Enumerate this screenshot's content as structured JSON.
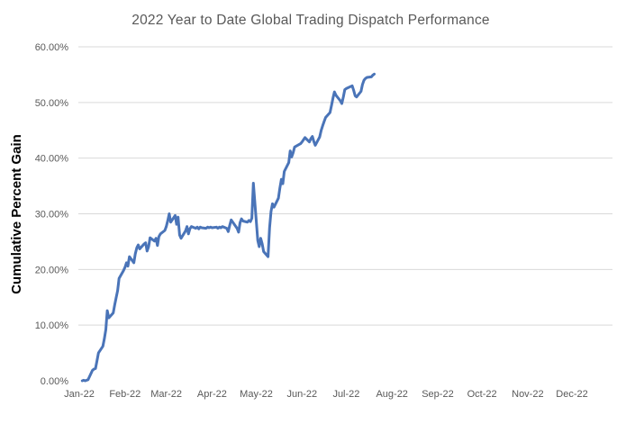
{
  "title": "2022 Year to Date Global Trading Dispatch Performance",
  "colors": {
    "background": "#FFFFFF",
    "title_text": "#595959",
    "axis_label_text": "#595959",
    "axis_title_text": "#000000",
    "gridline": "#D9D9D9",
    "line": "#4A74B8"
  },
  "chart_data": {
    "type": "line",
    "title": "2022 Year to Date Global Trading Dispatch Performance",
    "xlabel": "",
    "ylabel": "Cumulative Percent Gain",
    "ylim": [
      0,
      60
    ],
    "y_tick_labels": [
      "0.00%",
      "10.00%",
      "20.00%",
      "30.00%",
      "40.00%",
      "50.00%",
      "60.00%"
    ],
    "x_tick_labels": [
      "Jan-22",
      "Feb-22",
      "Mar-22",
      "Apr-22",
      "May-22",
      "Jun-22",
      "Jul-22",
      "Aug-22",
      "Sep-22",
      "Oct-22",
      "Nov-22",
      "Dec-22"
    ],
    "grid": "horizontal-only, no gridline at 0%",
    "legend": "none",
    "units": "percent",
    "series": [
      {
        "name": "Cumulative Percent Gain",
        "color": "#4A74B8",
        "points": [
          [
            "2022-01-03",
            0.0
          ],
          [
            "2022-01-04",
            0.1
          ],
          [
            "2022-01-05",
            0.0
          ],
          [
            "2022-01-06",
            0.1
          ],
          [
            "2022-01-07",
            0.2
          ],
          [
            "2022-01-10",
            1.9
          ],
          [
            "2022-01-11",
            2.1
          ],
          [
            "2022-01-12",
            2.2
          ],
          [
            "2022-01-13",
            3.6
          ],
          [
            "2022-01-14",
            5.0
          ],
          [
            "2022-01-17",
            6.2
          ],
          [
            "2022-01-18",
            7.5
          ],
          [
            "2022-01-19",
            9.2
          ],
          [
            "2022-01-20",
            12.6
          ],
          [
            "2022-01-21",
            11.3
          ],
          [
            "2022-01-24",
            12.2
          ],
          [
            "2022-01-25",
            13.6
          ],
          [
            "2022-01-26",
            14.9
          ],
          [
            "2022-01-27",
            16.2
          ],
          [
            "2022-01-28",
            18.4
          ],
          [
            "2022-01-31",
            19.8
          ],
          [
            "2022-02-01",
            20.4
          ],
          [
            "2022-02-02",
            21.2
          ],
          [
            "2022-02-03",
            20.6
          ],
          [
            "2022-02-04",
            22.3
          ],
          [
            "2022-02-07",
            21.2
          ],
          [
            "2022-02-08",
            22.8
          ],
          [
            "2022-02-09",
            23.9
          ],
          [
            "2022-02-10",
            24.4
          ],
          [
            "2022-02-11",
            23.7
          ],
          [
            "2022-02-14",
            24.6
          ],
          [
            "2022-02-15",
            24.8
          ],
          [
            "2022-02-16",
            23.3
          ],
          [
            "2022-02-17",
            24.1
          ],
          [
            "2022-02-18",
            25.7
          ],
          [
            "2022-02-21",
            25.1
          ],
          [
            "2022-02-22",
            25.6
          ],
          [
            "2022-02-23",
            24.3
          ],
          [
            "2022-02-24",
            25.9
          ],
          [
            "2022-02-25",
            26.4
          ],
          [
            "2022-02-28",
            27.0
          ],
          [
            "2022-03-01",
            27.7
          ],
          [
            "2022-03-02",
            28.8
          ],
          [
            "2022-03-03",
            30.0
          ],
          [
            "2022-03-04",
            28.5
          ],
          [
            "2022-03-07",
            29.7
          ],
          [
            "2022-03-08",
            28.1
          ],
          [
            "2022-03-09",
            29.4
          ],
          [
            "2022-03-10",
            26.2
          ],
          [
            "2022-03-11",
            25.6
          ],
          [
            "2022-03-14",
            26.9
          ],
          [
            "2022-03-15",
            27.7
          ],
          [
            "2022-03-16",
            26.4
          ],
          [
            "2022-03-17",
            27.3
          ],
          [
            "2022-03-18",
            27.7
          ],
          [
            "2022-03-21",
            27.4
          ],
          [
            "2022-03-22",
            27.6
          ],
          [
            "2022-03-23",
            27.3
          ],
          [
            "2022-03-24",
            27.6
          ],
          [
            "2022-03-25",
            27.5
          ],
          [
            "2022-03-28",
            27.4
          ],
          [
            "2022-03-29",
            27.6
          ],
          [
            "2022-03-30",
            27.5
          ],
          [
            "2022-03-31",
            27.6
          ],
          [
            "2022-04-01",
            27.5
          ],
          [
            "2022-04-04",
            27.6
          ],
          [
            "2022-04-05",
            27.4
          ],
          [
            "2022-04-06",
            27.6
          ],
          [
            "2022-04-07",
            27.5
          ],
          [
            "2022-04-08",
            27.7
          ],
          [
            "2022-04-11",
            27.4
          ],
          [
            "2022-04-12",
            26.8
          ],
          [
            "2022-04-13",
            27.9
          ],
          [
            "2022-04-14",
            28.9
          ],
          [
            "2022-04-18",
            27.4
          ],
          [
            "2022-04-19",
            26.7
          ],
          [
            "2022-04-20",
            28.4
          ],
          [
            "2022-04-21",
            29.1
          ],
          [
            "2022-04-22",
            28.7
          ],
          [
            "2022-04-25",
            28.5
          ],
          [
            "2022-04-26",
            28.8
          ],
          [
            "2022-04-27",
            28.6
          ],
          [
            "2022-04-28",
            29.2
          ],
          [
            "2022-04-29",
            35.5
          ],
          [
            "2022-05-02",
            25.2
          ],
          [
            "2022-05-03",
            24.1
          ],
          [
            "2022-05-04",
            25.6
          ],
          [
            "2022-05-05",
            24.6
          ],
          [
            "2022-05-06",
            23.2
          ],
          [
            "2022-05-09",
            22.3
          ],
          [
            "2022-05-10",
            27.5
          ],
          [
            "2022-05-11",
            30.4
          ],
          [
            "2022-05-12",
            31.8
          ],
          [
            "2022-05-13",
            31.2
          ],
          [
            "2022-05-16",
            32.8
          ],
          [
            "2022-05-17",
            34.6
          ],
          [
            "2022-05-18",
            36.2
          ],
          [
            "2022-05-19",
            35.4
          ],
          [
            "2022-05-20",
            37.6
          ],
          [
            "2022-05-23",
            39.2
          ],
          [
            "2022-05-24",
            41.3
          ],
          [
            "2022-05-25",
            40.2
          ],
          [
            "2022-05-26",
            41.0
          ],
          [
            "2022-05-27",
            42.0
          ],
          [
            "2022-05-31",
            42.6
          ],
          [
            "2022-06-01",
            42.9
          ],
          [
            "2022-06-02",
            43.3
          ],
          [
            "2022-06-03",
            43.7
          ],
          [
            "2022-06-06",
            42.9
          ],
          [
            "2022-06-07",
            43.5
          ],
          [
            "2022-06-08",
            43.9
          ],
          [
            "2022-06-09",
            43.0
          ],
          [
            "2022-06-10",
            42.3
          ],
          [
            "2022-06-13",
            43.8
          ],
          [
            "2022-06-14",
            45.0
          ],
          [
            "2022-06-15",
            45.8
          ],
          [
            "2022-06-16",
            46.6
          ],
          [
            "2022-06-17",
            47.3
          ],
          [
            "2022-06-20",
            48.2
          ],
          [
            "2022-06-21",
            49.5
          ],
          [
            "2022-06-22",
            50.8
          ],
          [
            "2022-06-23",
            51.9
          ],
          [
            "2022-06-24",
            51.3
          ],
          [
            "2022-06-27",
            50.3
          ],
          [
            "2022-06-28",
            49.8
          ],
          [
            "2022-06-29",
            51.0
          ],
          [
            "2022-06-30",
            52.3
          ],
          [
            "2022-07-01",
            52.5
          ],
          [
            "2022-07-05",
            53.0
          ],
          [
            "2022-07-06",
            52.2
          ],
          [
            "2022-07-07",
            51.2
          ],
          [
            "2022-07-08",
            51.0
          ],
          [
            "2022-07-11",
            52.0
          ],
          [
            "2022-07-12",
            53.2
          ],
          [
            "2022-07-13",
            54.0
          ],
          [
            "2022-07-14",
            54.3
          ],
          [
            "2022-07-15",
            54.5
          ],
          [
            "2022-07-18",
            54.6
          ],
          [
            "2022-07-19",
            54.9
          ],
          [
            "2022-07-20",
            55.1
          ]
        ]
      }
    ]
  }
}
